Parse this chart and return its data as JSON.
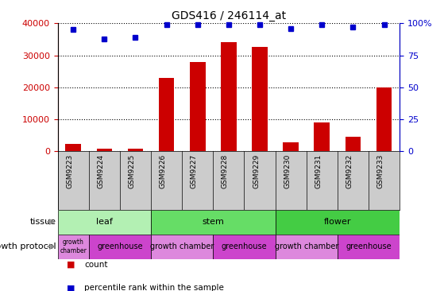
{
  "title": "GDS416 / 246114_at",
  "samples": [
    "GSM9223",
    "GSM9224",
    "GSM9225",
    "GSM9226",
    "GSM9227",
    "GSM9228",
    "GSM9229",
    "GSM9230",
    "GSM9231",
    "GSM9232",
    "GSM9233"
  ],
  "counts": [
    2200,
    900,
    900,
    23000,
    28000,
    34000,
    32500,
    2800,
    9000,
    4500,
    20000
  ],
  "percentiles": [
    95,
    88,
    89,
    99,
    99,
    99,
    99,
    96,
    99,
    97,
    99
  ],
  "ylim_left": [
    0,
    40000
  ],
  "ylim_right": [
    0,
    100
  ],
  "yticks_left": [
    0,
    10000,
    20000,
    30000,
    40000
  ],
  "yticks_right": [
    0,
    25,
    50,
    75,
    100
  ],
  "ytick_left_labels": [
    "0",
    "10000",
    "20000",
    "30000",
    "40000"
  ],
  "ytick_right_labels": [
    "0",
    "25",
    "50",
    "75",
    "100%"
  ],
  "bar_color": "#cc0000",
  "dot_color": "#0000cc",
  "tissue_groups": [
    {
      "label": "leaf",
      "start": 0,
      "end": 3,
      "color": "#b3f0b3"
    },
    {
      "label": "stem",
      "start": 3,
      "end": 7,
      "color": "#66dd66"
    },
    {
      "label": "flower",
      "start": 7,
      "end": 11,
      "color": "#44cc44"
    }
  ],
  "growth_protocol_groups": [
    {
      "label": "growth\nchamber",
      "start": 0,
      "end": 1,
      "color": "#dd88dd"
    },
    {
      "label": "greenhouse",
      "start": 1,
      "end": 3,
      "color": "#cc44cc"
    },
    {
      "label": "growth chamber",
      "start": 3,
      "end": 5,
      "color": "#dd88dd"
    },
    {
      "label": "greenhouse",
      "start": 5,
      "end": 7,
      "color": "#cc44cc"
    },
    {
      "label": "growth chamber",
      "start": 7,
      "end": 9,
      "color": "#dd88dd"
    },
    {
      "label": "greenhouse",
      "start": 9,
      "end": 11,
      "color": "#cc44cc"
    }
  ],
  "legend_count_label": "count",
  "legend_percentile_label": "percentile rank within the sample",
  "tissue_row_label": "tissue",
  "growth_row_label": "growth protocol",
  "xaxis_bg_color": "#cccccc",
  "left_axis_color": "#cc0000",
  "right_axis_color": "#0000cc",
  "fig_width": 5.59,
  "fig_height": 3.66,
  "dpi": 100
}
